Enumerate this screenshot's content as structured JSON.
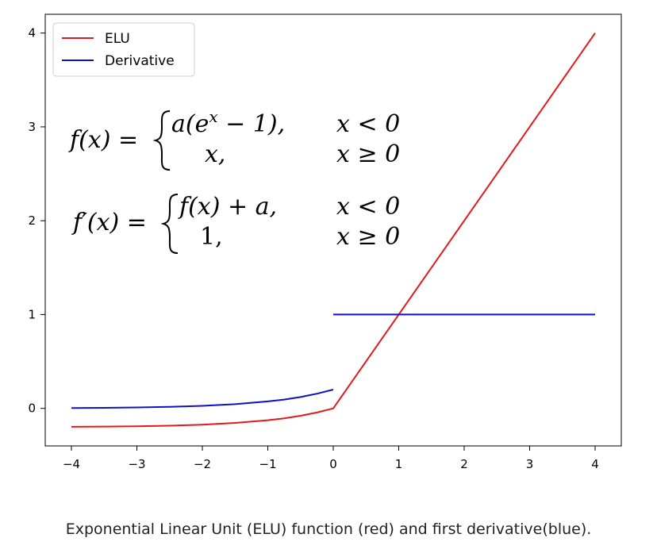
{
  "chart_data": {
    "type": "line",
    "xlim": [
      -4.4,
      4.4
    ],
    "ylim": [
      -0.4,
      4.2
    ],
    "x_ticks": [
      -4,
      -3,
      -2,
      -1,
      0,
      1,
      2,
      3,
      4
    ],
    "x_tick_labels": [
      "−4",
      "−3",
      "−2",
      "−1",
      "0",
      "1",
      "2",
      "3",
      "4"
    ],
    "y_ticks": [
      0,
      1,
      2,
      3,
      4
    ],
    "y_tick_labels": [
      "0",
      "1",
      "2",
      "3",
      "4"
    ],
    "grid": false,
    "legend_position": "top-left",
    "alpha": 0.2,
    "series": [
      {
        "name": "ELU",
        "color": "#e31a1c",
        "x": [
          -4,
          -3.5,
          -3,
          -2.5,
          -2,
          -1.5,
          -1,
          -0.75,
          -0.5,
          -0.25,
          0,
          4
        ],
        "y": [
          -0.196,
          -0.194,
          -0.19,
          -0.184,
          -0.173,
          -0.155,
          -0.126,
          -0.106,
          -0.079,
          -0.044,
          0,
          4
        ]
      },
      {
        "name": "Derivative",
        "color": "#1010c8",
        "segments": [
          {
            "x": [
              -4,
              -3.5,
              -3,
              -2.5,
              -2,
              -1.5,
              -1,
              -0.75,
              -0.5,
              -0.25,
              0
            ],
            "y": [
              0.004,
              0.006,
              0.01,
              0.016,
              0.027,
              0.045,
              0.074,
              0.094,
              0.121,
              0.156,
              0.2
            ]
          },
          {
            "x": [
              0,
              4
            ],
            "y": [
              1,
              1
            ]
          }
        ]
      }
    ]
  },
  "formulas": {
    "f_lhs": "f(x) =",
    "f_case1_expr_pre": "a(e",
    "f_case1_expr_sup": "x",
    "f_case1_expr_post": " − 1),",
    "f_case1_cond": "x < 0",
    "f_case2_expr": "x,",
    "f_case2_cond": "x ≥ 0",
    "fp_lhs": "f′(x) =",
    "fp_case1_expr": "f(x) + a,",
    "fp_case1_cond": "x < 0",
    "fp_case2_expr": "1,",
    "fp_case2_cond": "x ≥ 0"
  },
  "caption": "Exponential Linear Unit (ELU) function (red) and first derivative(blue)."
}
